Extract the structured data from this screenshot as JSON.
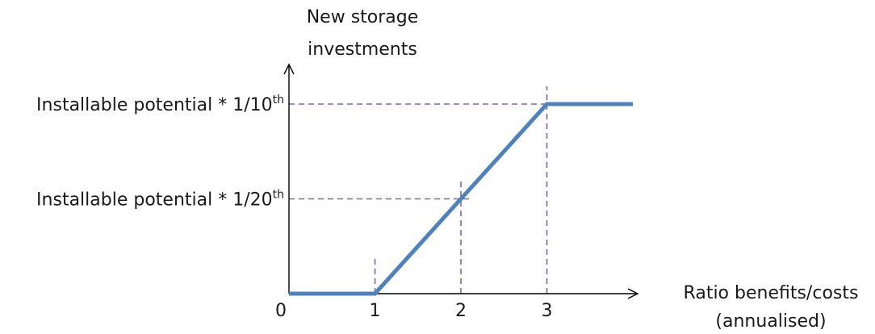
{
  "chart_data": {
    "type": "line",
    "title": "",
    "ylabel_lines": [
      "New storage",
      "investments"
    ],
    "xlabel_lines": [
      "Ratio benefits/costs",
      "(annualised)"
    ],
    "origin_label": "0",
    "x_ticks": [
      "1",
      "2",
      "3"
    ],
    "y_levels": [
      {
        "name": "tenth",
        "base": "Installable potential * 1/10",
        "sup": "th",
        "fraction": 0.1
      },
      {
        "name": "twentieth",
        "base": "Installable potential * 1/20",
        "sup": "th",
        "fraction": 0.05
      }
    ],
    "series": [
      {
        "x": [
          0,
          1,
          2,
          3,
          4
        ],
        "y": [
          0,
          0,
          0.05,
          0.1,
          0.1
        ]
      }
    ],
    "xlim": [
      0,
      4
    ],
    "ylim": [
      0,
      0.1
    ],
    "grid": false,
    "colors": {
      "line": "#4f81bd",
      "guides": "#8064a2",
      "axes": "#000000"
    }
  }
}
